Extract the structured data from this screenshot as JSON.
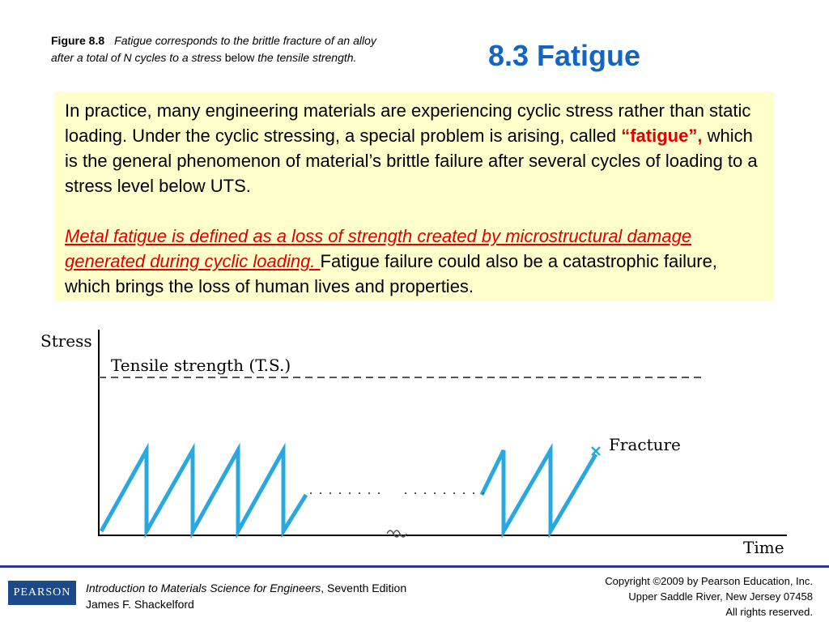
{
  "caption": {
    "figure_label": "Figure 8.8",
    "italic_text": "Fatigue corresponds to the brittle fracture of an alloy after a total of N cycles to a stress",
    "plain_text": "below",
    "italic_text_end": "the tensile strength."
  },
  "title": "8.3 Fatigue",
  "body": {
    "p1_before": "In practice, many engineering materials are experiencing cyclic stress rather than static loading. Under the cyclic stressing, a special problem is arising, called ",
    "p1_highlight": "“fatigue”,",
    "p1_after": " which is the general phenomenon of material’s brittle failure after several cycles of loading to a stress level below UTS.",
    "p2_underlined": "Metal fatigue is defined as a loss of strength created by microstructural damage generated during cyclic loading. ",
    "p2_after": "Fatigue failure could also be a catastrophic failure, which brings the loss of human lives and properties."
  },
  "chart_data": {
    "type": "line",
    "ylabel": "Stress",
    "xlabel": "Time",
    "reference_line_label": "Tensile strength (T.S.)",
    "end_annotation": "Fracture",
    "series_color": "#29A8E0"
  },
  "footer": {
    "logo_text": "PEARSON",
    "book_title": "Introduction to Materials Science for Engineers",
    "edition": ", Seventh Edition",
    "author": "James F. Shackelford",
    "copyright": "Copyright ©2009 by Pearson Education, Inc.",
    "address": "Upper Saddle River, New Jersey 07458",
    "rights": "All rights reserved."
  }
}
